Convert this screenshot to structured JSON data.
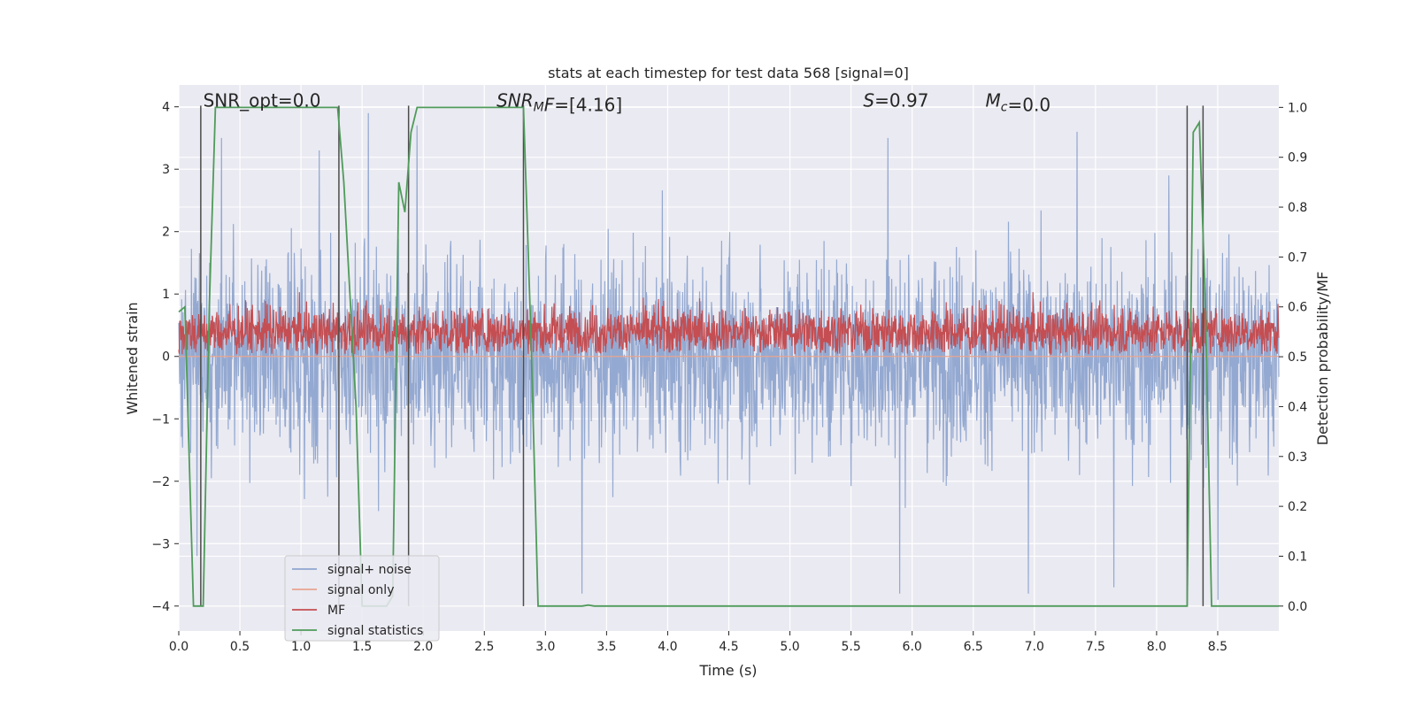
{
  "chart_data": {
    "type": "line",
    "title": "stats at each timestep for test data 568 [signal=0]",
    "xlabel": "Time (s)",
    "ylabel": "Whitened strain",
    "ylabel_right": "Detection probability/MF",
    "xlim": [
      0.0,
      9.0
    ],
    "ylim": [
      -4.4,
      4.35
    ],
    "ylim_right": [
      -0.05,
      1.045
    ],
    "x_ticks": [
      "0.0",
      "0.5",
      "1.0",
      "1.5",
      "2.0",
      "2.5",
      "3.0",
      "3.5",
      "4.0",
      "4.5",
      "5.0",
      "5.5",
      "6.0",
      "6.5",
      "7.0",
      "7.5",
      "8.0",
      "8.5"
    ],
    "y_ticks": [
      "4",
      "3",
      "2",
      "1",
      "0",
      "−1",
      "−2",
      "−3",
      "−4"
    ],
    "y_right_ticks": [
      "1.0",
      "0.9",
      "0.8",
      "0.7",
      "0.6",
      "0.5",
      "0.4",
      "0.3",
      "0.2",
      "0.1",
      "0.0"
    ],
    "annotations": [
      {
        "text": "SNR_opt=0.0",
        "x": 0.2,
        "y": 4.1
      },
      {
        "text": "=[4.16]",
        "prefix": "SNR",
        "sub": "M",
        "mid": "F",
        "x": 2.6,
        "y": 4.1
      },
      {
        "text": "=0.97",
        "prefix": "S",
        "x": 5.6,
        "y": 4.1
      },
      {
        "text": "=0.0",
        "prefix": "M",
        "sub": "c",
        "x": 6.6,
        "y": 4.1
      }
    ],
    "legend": {
      "placement": "lower-left",
      "entries": [
        "signal+ noise",
        "signal only",
        "MF",
        "signal statistics"
      ]
    },
    "grid": true,
    "series": [
      {
        "name": "signal+ noise",
        "color": "#8fa5cf",
        "kind": "noise",
        "x_range": [
          0.0,
          9.0
        ],
        "approx_amplitude": 1.1,
        "peaks": [
          [
            0.15,
            -3.2
          ],
          [
            0.35,
            3.5
          ],
          [
            1.15,
            3.3
          ],
          [
            1.55,
            3.9
          ],
          [
            1.95,
            3.7
          ],
          [
            3.3,
            -3.8
          ],
          [
            5.8,
            3.5
          ],
          [
            5.9,
            -3.8
          ],
          [
            6.95,
            -3.8
          ],
          [
            7.35,
            3.6
          ],
          [
            7.65,
            -3.7
          ],
          [
            8.1,
            2.9
          ],
          [
            8.5,
            -3.9
          ]
        ]
      },
      {
        "name": "signal only",
        "color": "#e8a48f",
        "x": [
          0.0,
          9.0
        ],
        "y": [
          0.0,
          0.0
        ]
      },
      {
        "name": "MF",
        "color": "#c44e52",
        "kind": "noise",
        "axis": "right",
        "x_range": [
          0.0,
          9.0
        ],
        "mean": 0.55,
        "approx_amplitude": 0.035
      },
      {
        "name": "signal statistics",
        "color": "#4f9b5a",
        "axis": "right",
        "x": [
          0.0,
          0.05,
          0.12,
          0.2,
          0.25,
          0.3,
          0.5,
          1.0,
          1.3,
          1.35,
          1.45,
          1.5,
          1.7,
          1.75,
          1.8,
          1.85,
          1.9,
          1.95,
          2.0,
          2.5,
          2.82,
          2.88,
          2.94,
          3.0,
          3.3,
          3.35,
          3.4,
          4.0,
          5.0,
          6.0,
          7.0,
          8.0,
          8.25,
          8.3,
          8.35,
          8.4,
          8.45,
          9.0
        ],
        "y": [
          0.59,
          0.6,
          0.0,
          0.0,
          0.6,
          1.0,
          1.0,
          1.0,
          1.0,
          0.85,
          0.4,
          0.0,
          0.0,
          0.02,
          0.85,
          0.79,
          0.95,
          1.0,
          1.0,
          1.0,
          1.0,
          0.55,
          0.0,
          0.0,
          0.0,
          0.002,
          0.0,
          0.0,
          0.0,
          0.0,
          0.0,
          0.0,
          0.0,
          0.95,
          0.97,
          0.6,
          0.0,
          0.0
        ]
      }
    ],
    "vertical_markers": {
      "color": "#4c4c4c",
      "x": [
        0.18,
        1.31,
        1.88,
        2.82,
        8.25,
        8.38
      ]
    }
  }
}
